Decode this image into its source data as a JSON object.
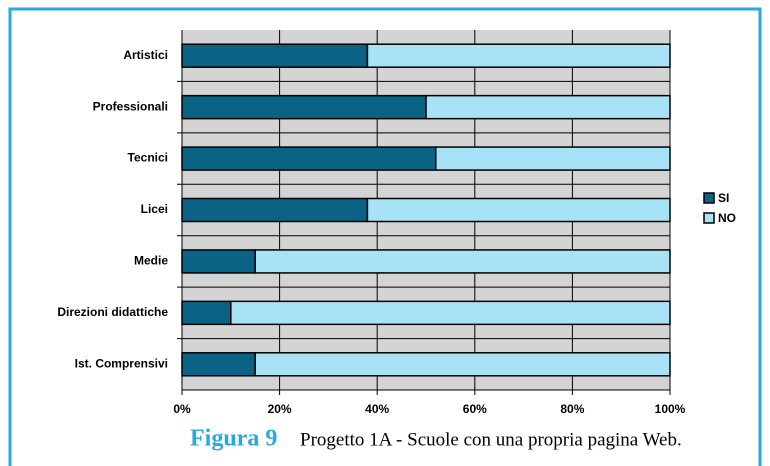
{
  "chart_data": {
    "type": "stacked-bar-horizontal",
    "figure_label": "Figura 9",
    "title": "Progetto 1A - Scuole con una propria pagina Web.",
    "categories": [
      "Artistici",
      "Professionali",
      "Tecnici",
      "Licei",
      "Medie",
      "Direzioni didattiche",
      "Ist. Comprensivi"
    ],
    "series": [
      {
        "name": "SI",
        "color": "#0a6384",
        "values": [
          38,
          50,
          52,
          38,
          15,
          10,
          15
        ]
      },
      {
        "name": "NO",
        "color": "#a8e2f6",
        "values": [
          62,
          50,
          48,
          62,
          85,
          90,
          85
        ]
      }
    ],
    "xlim": [
      0,
      100
    ],
    "xticks": [
      {
        "value": 0,
        "label": "0%"
      },
      {
        "value": 20,
        "label": "20%"
      },
      {
        "value": 40,
        "label": "40%"
      },
      {
        "value": 60,
        "label": "60%"
      },
      {
        "value": 80,
        "label": "80%"
      },
      {
        "value": 100,
        "label": "100%"
      }
    ],
    "grid": true,
    "legend": "right"
  }
}
